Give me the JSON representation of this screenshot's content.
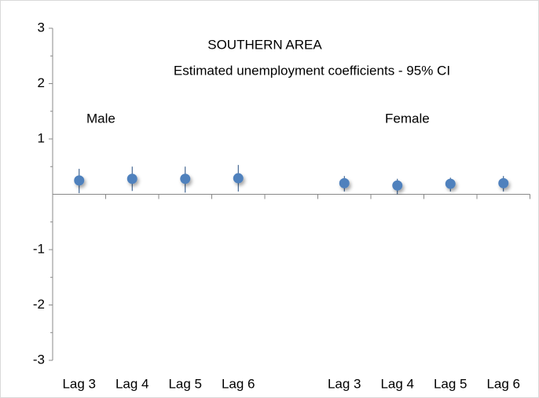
{
  "chart_data": {
    "type": "errorbar",
    "title": "SOUTHERN  AREA",
    "subtitle": "Estimated unemployment coefficients - 95% CI",
    "annotations": [
      "Male",
      "Female"
    ],
    "categories": [
      "Lag 3",
      "Lag 4",
      "Lag 5",
      "Lag 6",
      null,
      "Lag 3",
      "Lag 4",
      "Lag 5",
      "Lag 6"
    ],
    "values": [
      0.25,
      0.28,
      0.28,
      0.29,
      null,
      0.2,
      0.16,
      0.19,
      0.2
    ],
    "lower": [
      0.02,
      0.06,
      0.03,
      0.05,
      null,
      0.05,
      0,
      0.05,
      0.05
    ],
    "upper": [
      0.46,
      0.5,
      0.5,
      0.53,
      null,
      0.33,
      0.28,
      0.3,
      0.33
    ],
    "color": "#4f81bd",
    "cap_color": "#1f497d",
    "ylim": [
      -3,
      3
    ],
    "yticks": [
      -3,
      -2,
      -1,
      1,
      2,
      3
    ],
    "minor_yticks": [
      -2.5,
      -1.5,
      -0.5,
      0.5,
      1.5,
      2.5
    ]
  }
}
